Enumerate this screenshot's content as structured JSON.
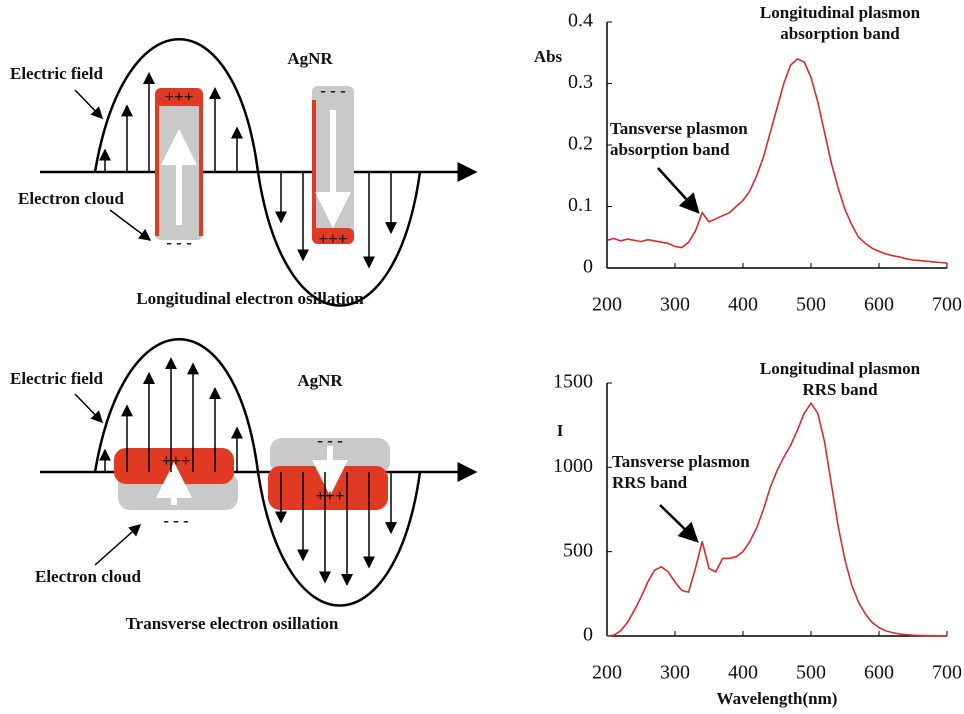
{
  "diagrams": [
    {
      "field_label": "Electric field",
      "rod_label": "AgNR",
      "cloud_label": "Electron cloud",
      "caption": "Longitudinal electron osillation",
      "plus": "+++",
      "minus": "- - -"
    },
    {
      "field_label": "Electric field",
      "rod_label": "AgNR",
      "cloud_label": "Electron cloud",
      "caption": "Transverse electron osillation",
      "plus": "+++",
      "minus": "- - -"
    }
  ],
  "chart_data": [
    {
      "type": "line",
      "y_label": "Abs",
      "color": "#d92a2e",
      "annotations": [
        [
          "Longitudinal plasmon",
          "absorption band"
        ],
        [
          "Tansverse plasmon",
          "absorption band"
        ]
      ],
      "x": [
        200,
        210,
        220,
        230,
        240,
        250,
        260,
        270,
        280,
        290,
        300,
        310,
        320,
        330,
        340,
        350,
        360,
        370,
        380,
        390,
        400,
        410,
        420,
        430,
        440,
        450,
        460,
        470,
        480,
        490,
        500,
        510,
        520,
        530,
        540,
        550,
        560,
        570,
        580,
        590,
        600,
        610,
        620,
        630,
        640,
        650,
        660,
        670,
        680,
        690,
        700
      ],
      "values": [
        0.045,
        0.048,
        0.044,
        0.047,
        0.045,
        0.043,
        0.046,
        0.044,
        0.042,
        0.04,
        0.035,
        0.033,
        0.042,
        0.06,
        0.09,
        0.075,
        0.08,
        0.085,
        0.09,
        0.1,
        0.11,
        0.125,
        0.15,
        0.18,
        0.22,
        0.26,
        0.3,
        0.33,
        0.34,
        0.335,
        0.31,
        0.27,
        0.22,
        0.17,
        0.13,
        0.095,
        0.07,
        0.05,
        0.04,
        0.032,
        0.027,
        0.023,
        0.02,
        0.018,
        0.015,
        0.013,
        0.012,
        0.011,
        0.01,
        0.009,
        0.008
      ],
      "xlim": [
        200,
        700
      ],
      "xticks": [
        200,
        300,
        400,
        500,
        600,
        700
      ],
      "ylim": [
        0,
        0.4
      ],
      "yticks": [
        0,
        0.1,
        0.2,
        0.3,
        0.4
      ]
    },
    {
      "type": "line",
      "y_label": "I",
      "x_label": "Wavelength(nm)",
      "color": "#d92a2e",
      "annotations": [
        [
          "Longitudinal plasmon",
          "RRS band"
        ],
        [
          "Tansverse plasmon",
          "RRS band"
        ]
      ],
      "x": [
        200,
        210,
        220,
        230,
        240,
        250,
        260,
        270,
        280,
        290,
        300,
        310,
        320,
        330,
        340,
        350,
        360,
        370,
        380,
        390,
        400,
        410,
        420,
        430,
        440,
        450,
        460,
        470,
        480,
        490,
        500,
        510,
        520,
        530,
        540,
        550,
        560,
        570,
        580,
        590,
        600,
        610,
        620,
        630,
        640,
        650,
        660,
        670,
        680,
        690,
        700
      ],
      "values": [
        0,
        5,
        30,
        80,
        150,
        230,
        320,
        390,
        410,
        380,
        320,
        270,
        260,
        400,
        560,
        400,
        380,
        460,
        460,
        470,
        500,
        560,
        640,
        750,
        880,
        980,
        1060,
        1130,
        1220,
        1320,
        1380,
        1320,
        1150,
        900,
        650,
        450,
        300,
        200,
        130,
        80,
        50,
        30,
        20,
        12,
        8,
        5,
        3,
        2,
        1,
        0,
        0
      ],
      "xlim": [
        200,
        700
      ],
      "xticks": [
        200,
        300,
        400,
        500,
        600,
        700
      ],
      "ylim": [
        0,
        1500
      ],
      "yticks": [
        0,
        500,
        1000,
        1500
      ]
    }
  ]
}
